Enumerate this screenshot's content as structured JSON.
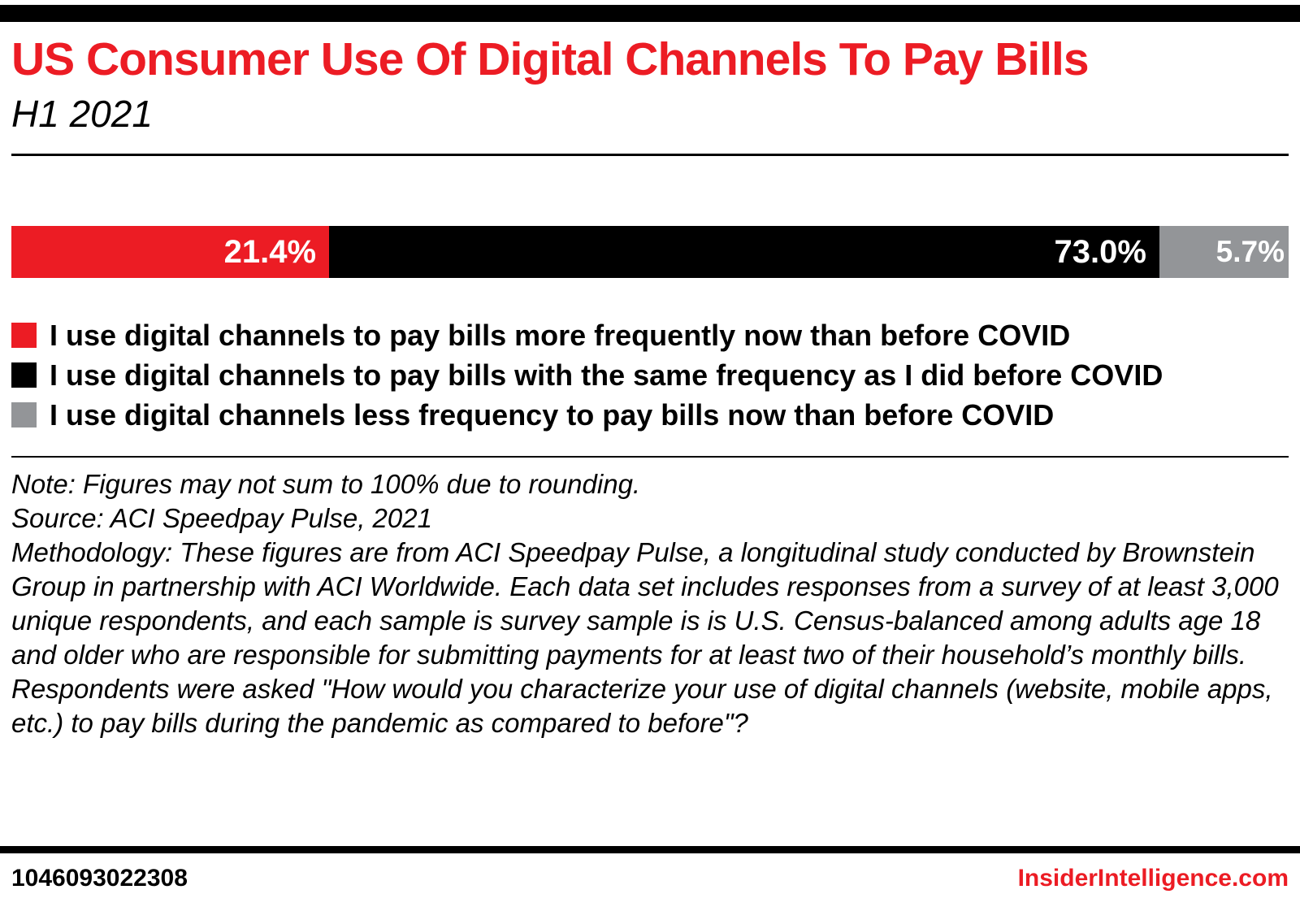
{
  "header": {
    "title": "US Consumer Use Of Digital Channels To Pay Bills",
    "subtitle": "H1 2021"
  },
  "chart_data": {
    "type": "bar",
    "variant": "horizontal-stacked",
    "title": "US Consumer Use Of Digital Channels To Pay Bills",
    "subtitle": "H1 2021",
    "legend_position": "below",
    "series": [
      {
        "name": "I use digital channels to pay bills more frequently now than before COVID",
        "value": 21.4,
        "label": "21.4%",
        "color": "#EC1C24"
      },
      {
        "name": "I use digital channels to pay bills with the same frequency as I did before COVID",
        "value": 73.0,
        "label": "73.0%",
        "color": "#000000"
      },
      {
        "name": "I use digital channels less frequency to pay bills now than before COVID",
        "value": 5.7,
        "label": "5.7%",
        "color": "#939598"
      }
    ]
  },
  "notes": {
    "note": "Note: Figures may not sum to 100% due to rounding.",
    "source": "Source: ACI Speedpay Pulse, 2021",
    "methodology": "Methodology: These figures are from ACI Speedpay Pulse, a longitudinal study conducted by Brownstein Group in partnership with ACI Worldwide. Each data set includes responses from a survey of at least 3,000 unique respondents, and each sample is survey sample is  is U.S. Census-balanced among adults age 18 and older who are responsible for submitting payments for at least two of their household’s monthly bills. Respondents were asked \"How would you characterize your use of digital channels (website, mobile apps, etc.) to pay bills during the pandemic as compared to before\"?"
  },
  "footer": {
    "chart_id": "1046093022308",
    "brand": "InsiderIntelligence.com"
  }
}
